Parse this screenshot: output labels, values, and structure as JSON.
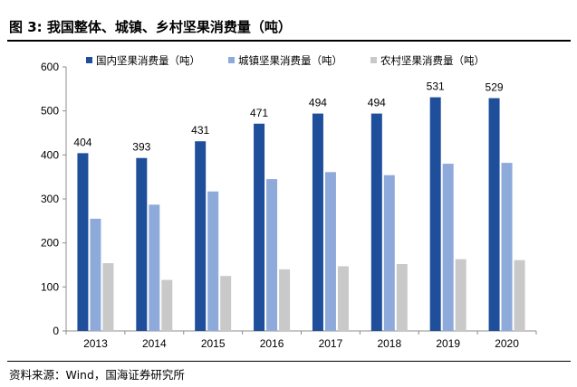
{
  "figure_title": "图 3:  我国整体、城镇、乡村坚果消费量（吨）",
  "source": "资料来源：Wind，国海证券研究所",
  "chart_data": {
    "type": "bar",
    "categories": [
      "2013",
      "2014",
      "2015",
      "2016",
      "2017",
      "2018",
      "2019",
      "2020"
    ],
    "series": [
      {
        "name": "国内坚果消费量（吨）",
        "color": "#1F4E9B",
        "values": [
          404,
          393,
          431,
          471,
          494,
          494,
          531,
          529
        ]
      },
      {
        "name": "城镇坚果消费量（吨）",
        "color": "#8EAADB",
        "values": [
          255,
          287,
          317,
          345,
          361,
          354,
          380,
          382
        ]
      },
      {
        "name": "农村坚果消费量（吨）",
        "color": "#C9C9C9",
        "values": [
          154,
          116,
          125,
          140,
          147,
          152,
          163,
          161
        ]
      }
    ],
    "data_labels_series": 0,
    "ylim": [
      0,
      600
    ],
    "yticks": [
      0,
      100,
      200,
      300,
      400,
      500,
      600
    ],
    "xlabel": "",
    "ylabel": "",
    "grid": false,
    "legend_position": "top"
  }
}
